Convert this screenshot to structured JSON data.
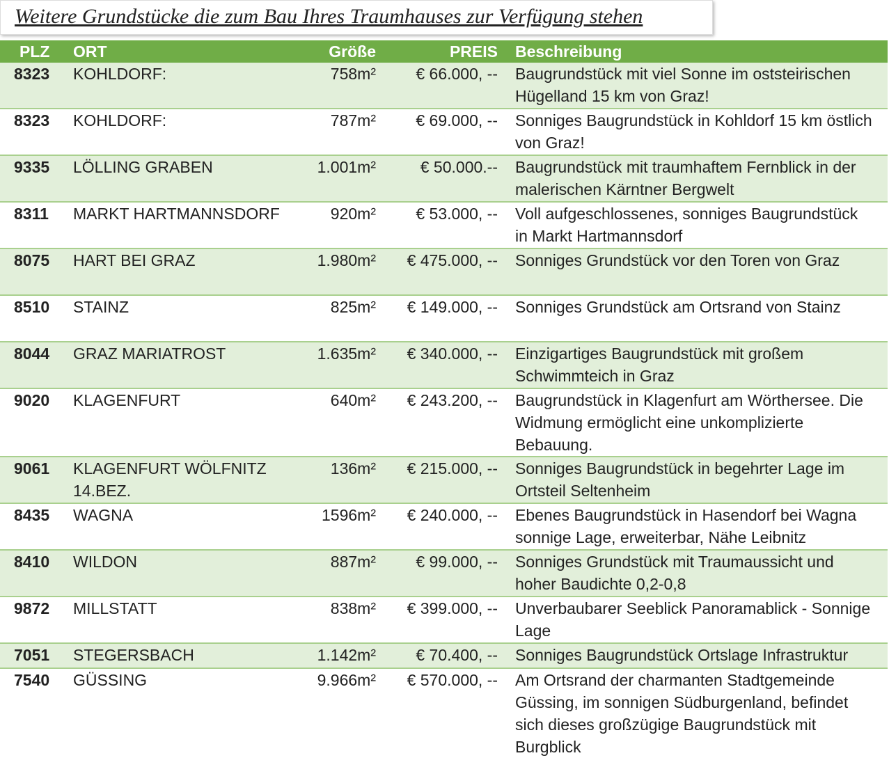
{
  "header": {
    "title": "Weitere Grundstücke die zum Bau Ihres Traumhauses zur Verfügung stehen"
  },
  "table": {
    "columns": [
      "PLZ",
      "ORT",
      "Größe",
      "PREIS",
      "Beschreibung"
    ],
    "rows": [
      [
        "8323",
        "KOHLDORF:",
        "758m²",
        "€ 66.000, --",
        "Baugrundstück mit viel Sonne im oststeirischen Hügelland 15 km von Graz!"
      ],
      [
        "8323",
        "KOHLDORF:",
        "787m²",
        "€ 69.000, --",
        "Sonniges Baugrundstück in Kohldorf 15 km östlich von Graz!"
      ],
      [
        "9335",
        "LÖLLING GRABEN",
        "1.001m²",
        "€ 50.000.--",
        "Baugrundstück mit traumhaftem Fernblick in der malerischen Kärntner Bergwelt"
      ],
      [
        "8311",
        "MARKT HARTMANNSDORF",
        "920m²",
        "€ 53.000, --",
        "Voll aufgeschlossenes, sonniges Baugrundstück in Markt Hartmannsdorf"
      ],
      [
        "8075",
        "HART BEI GRAZ",
        "1.980m²",
        "€ 475.000, --",
        "Sonniges Grundstück vor den Toren von Graz"
      ],
      [
        "8510",
        "STAINZ",
        "825m²",
        "€ 149.000, --",
        "Sonniges Grundstück am Ortsrand von Stainz"
      ],
      [
        "8044",
        "GRAZ MARIATROST",
        "1.635m²",
        "€ 340.000, --",
        "Einzigartiges Baugrundstück mit großem Schwimmteich in Graz"
      ],
      [
        "9020",
        "KLAGENFURT",
        "640m²",
        "€ 243.200, --",
        "Baugrundstück in Klagenfurt am Wörthersee. Die Widmung ermöglicht eine unkomplizierte Bebauung."
      ],
      [
        "9061",
        "KLAGENFURT WÖLFNITZ 14.BEZ.",
        "136m²",
        "€ 215.000, --",
        "Sonniges Baugrundstück in begehrter Lage im Ortsteil Seltenheim"
      ],
      [
        "8435",
        "WAGNA",
        "1596m²",
        "€ 240.000, --",
        "Ebenes Baugrundstück in Hasendorf bei Wagna sonnige Lage, erweiterbar, Nähe Leibnitz"
      ],
      [
        "8410",
        "WILDON",
        "887m²",
        "€ 99.000, --",
        "Sonniges Grundstück mit Traumaussicht und hoher Baudichte 0,2-0,8"
      ],
      [
        "9872",
        "MILLSTATT",
        "838m²",
        "€ 399.000, --",
        "Unverbaubarer Seeblick Panoramablick - Sonnige Lage"
      ],
      [
        "7051",
        "STEGERSBACH",
        "1.142m²",
        "€ 70.400, --",
        "Sonniges Baugrundstück Ortslage Infrastruktur"
      ],
      [
        "7540",
        "GÜSSING",
        "9.966m²",
        "€ 570.000, --",
        "Am Ortsrand der charmanten Stadtgemeinde Güssing, im sonnigen Südburgenland, befindet sich dieses großzügige Baugrundstück mit Burgblick"
      ]
    ]
  }
}
